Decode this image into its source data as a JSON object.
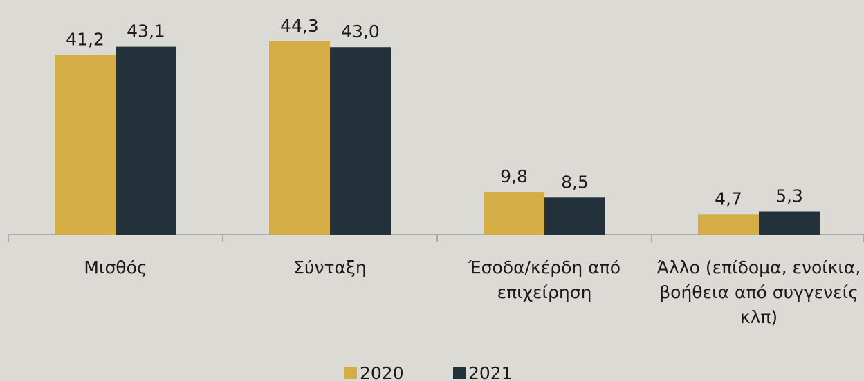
{
  "chart_data": {
    "type": "bar",
    "categories": [
      "Μισθός",
      "Σύνταξη",
      "Έσοδα/κέρδη από επιχείρηση",
      "Άλλο (επίδομα, ενοίκια, βοήθεια από συγγενείς κλπ)"
    ],
    "series": [
      {
        "name": "2020",
        "color": "#d4ae45",
        "values": [
          41.2,
          44.3,
          9.8,
          4.7
        ],
        "value_labels": [
          "41,2",
          "44,3",
          "9,8",
          "4,7"
        ]
      },
      {
        "name": "2021",
        "color": "#22313a",
        "values": [
          43.1,
          43.0,
          8.5,
          5.3
        ],
        "value_labels": [
          "43,1",
          "43,0",
          "8,5",
          "5,3"
        ]
      }
    ],
    "ylim": [
      0,
      50
    ]
  }
}
